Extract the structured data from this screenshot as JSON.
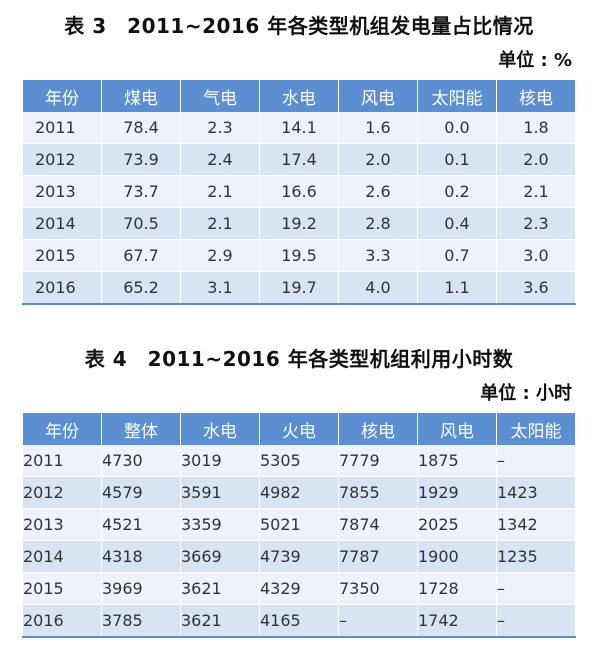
{
  "table3": {
    "title": "表 3　2011~2016 年各类型机组发电量占比情况",
    "unit": "单位 : %",
    "headers": [
      "年份",
      "煤电",
      "气电",
      "水电",
      "风电",
      "太阳能",
      "核电"
    ],
    "rows": [
      [
        "2011",
        "78.4",
        "2.3",
        "14.1",
        "1.6",
        "0.0",
        "1.8"
      ],
      [
        "2012",
        "73.9",
        "2.4",
        "17.4",
        "2.0",
        "0.1",
        "2.0"
      ],
      [
        "2013",
        "73.7",
        "2.1",
        "16.6",
        "2.6",
        "0.2",
        "2.1"
      ],
      [
        "2014",
        "70.5",
        "2.1",
        "19.2",
        "2.8",
        "0.4",
        "2.3"
      ],
      [
        "2015",
        "67.7",
        "2.9",
        "19.5",
        "3.3",
        "0.7",
        "3.0"
      ],
      [
        "2016",
        "65.2",
        "3.1",
        "19.7",
        "4.0",
        "1.1",
        "3.6"
      ]
    ]
  },
  "table4": {
    "title": "表 4　2011~2016 年各类型机组利用小时数",
    "unit": "单位 : 小时",
    "headers": [
      "年份",
      "整体",
      "水电",
      "火电",
      "核电",
      "风电",
      "太阳能"
    ],
    "rows": [
      [
        "2011",
        "4730",
        "3019",
        "5305",
        "7779",
        "1875",
        "–"
      ],
      [
        "2012",
        "4579",
        "3591",
        "4982",
        "7855",
        "1929",
        "1423"
      ],
      [
        "2013",
        "4521",
        "3359",
        "5021",
        "7874",
        "2025",
        "1342"
      ],
      [
        "2014",
        "4318",
        "3669",
        "4739",
        "7787",
        "1900",
        "1235"
      ],
      [
        "2015",
        "3969",
        "3621",
        "4329",
        "7350",
        "1728",
        "–"
      ],
      [
        "2016",
        "3785",
        "3621",
        "4165",
        "–",
        "1742",
        "–"
      ]
    ]
  }
}
